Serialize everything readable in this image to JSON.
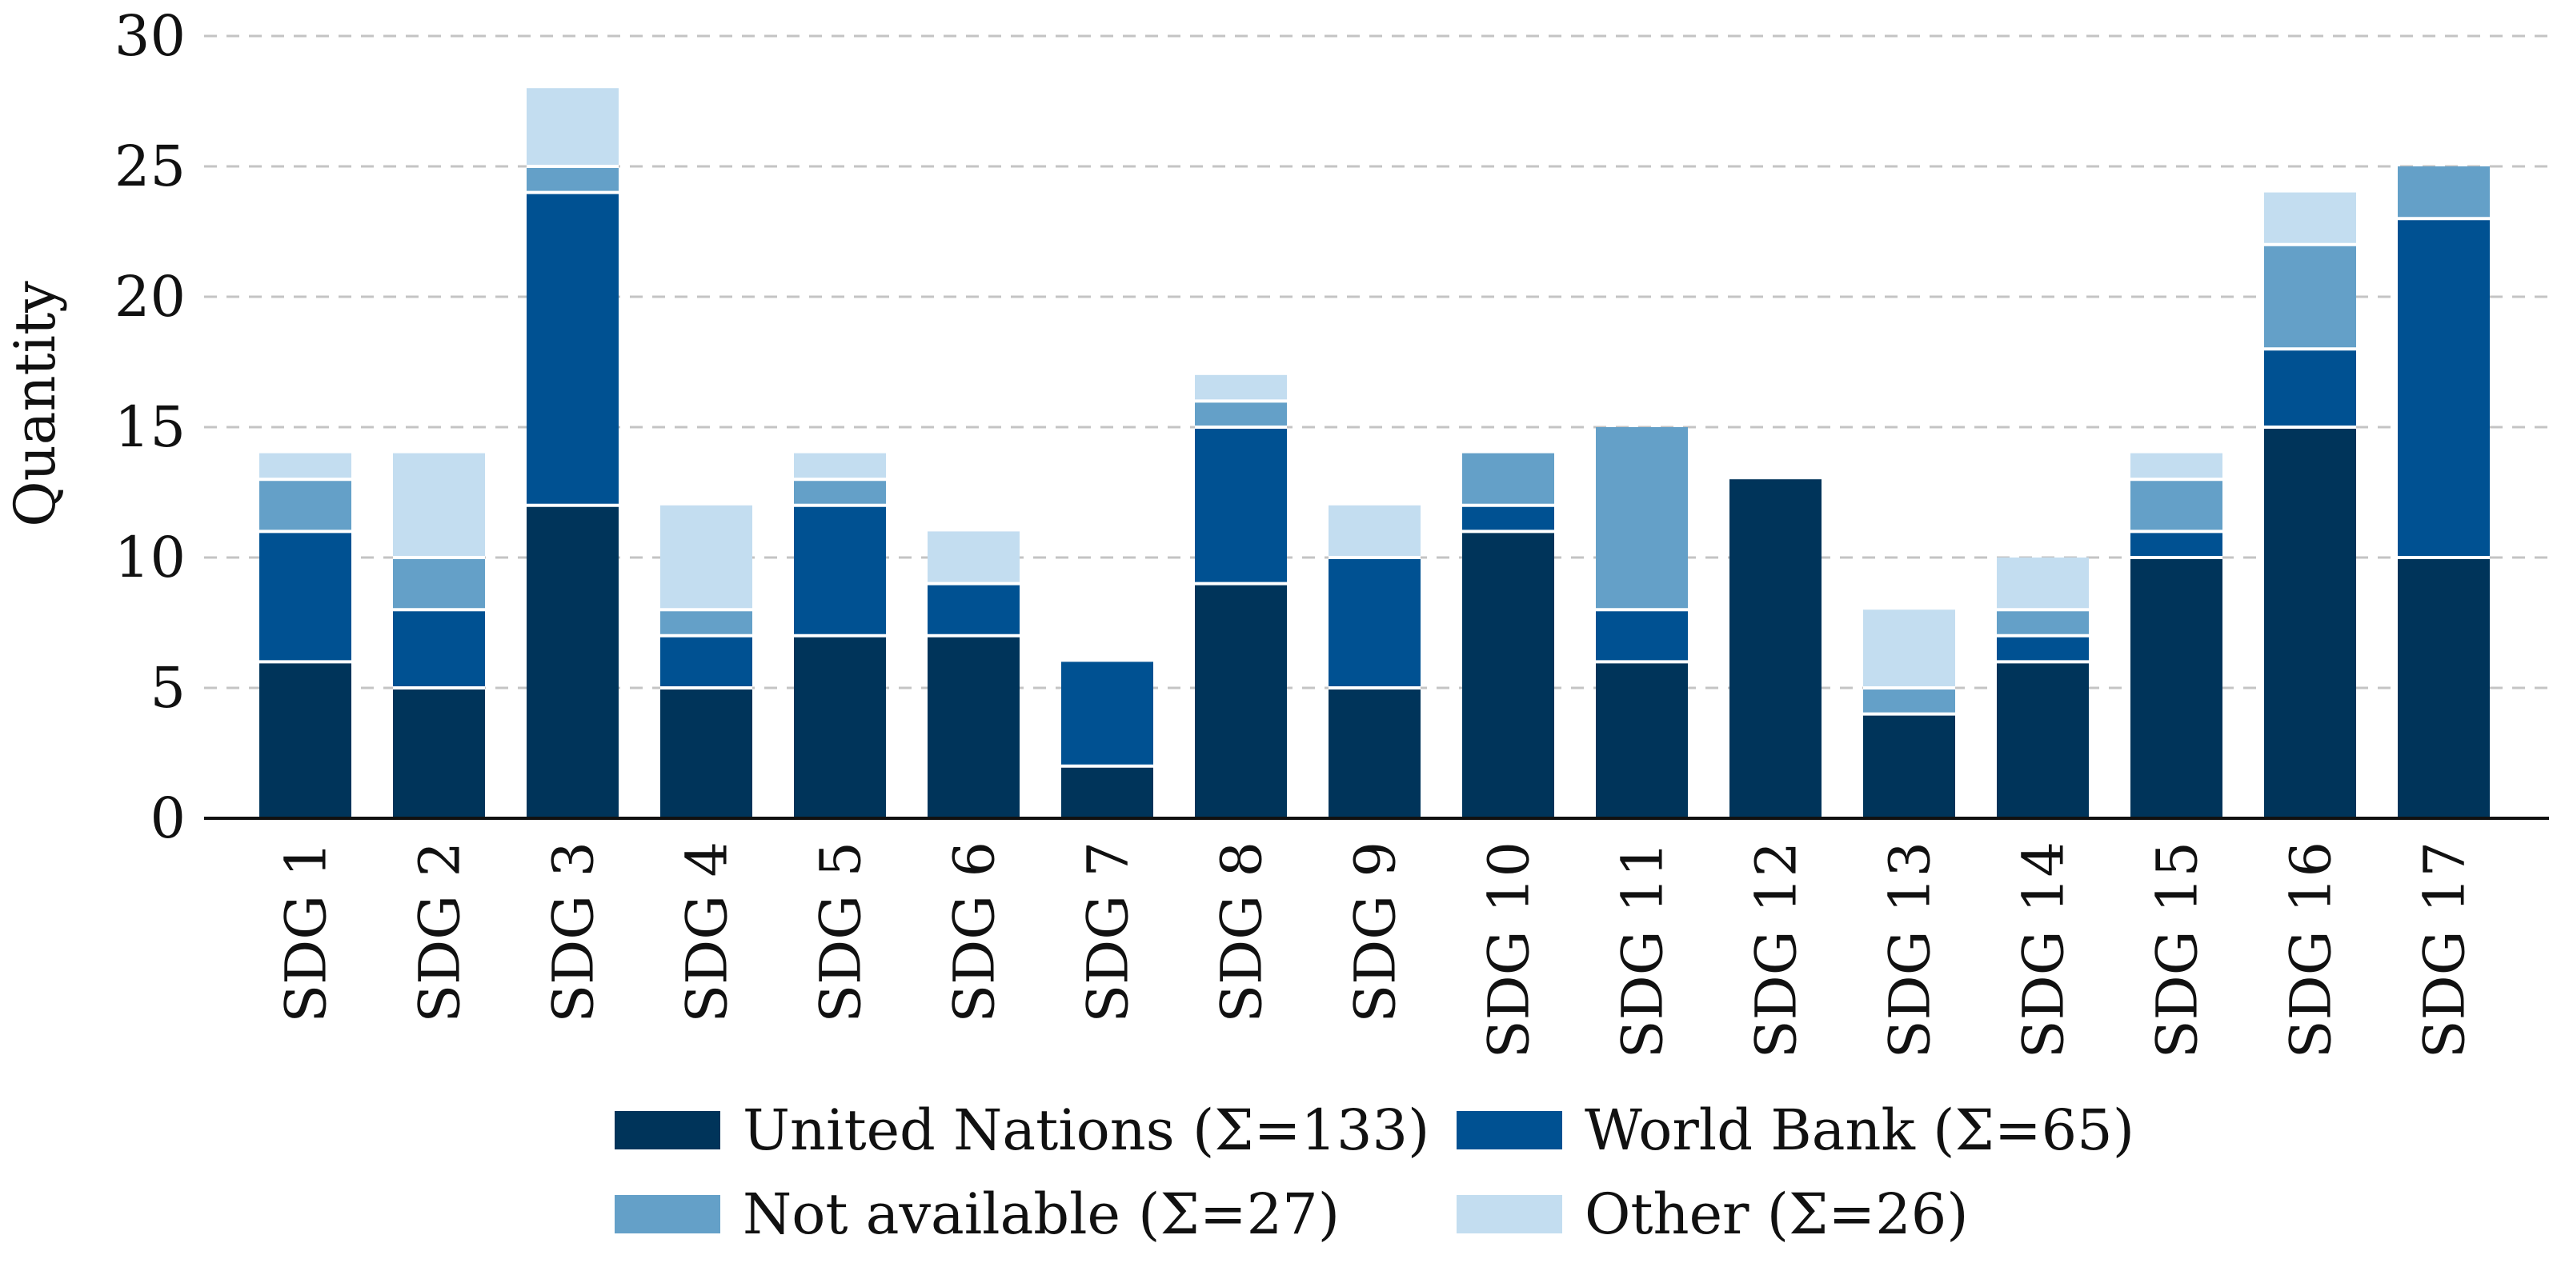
{
  "chart_data": {
    "type": "bar",
    "stacked": true,
    "title": "",
    "xlabel": "",
    "ylabel": "Quantity",
    "ylim": [
      0,
      30
    ],
    "yticks": [
      0,
      5,
      10,
      15,
      20,
      25,
      30
    ],
    "grid": "horizontal dashed",
    "legend_position": "bottom",
    "categories": [
      "SDG 1",
      "SDG 2",
      "SDG 3",
      "SDG 4",
      "SDG 5",
      "SDG 6",
      "SDG 7",
      "SDG 8",
      "SDG 9",
      "SDG 10",
      "SDG 11",
      "SDG 12",
      "SDG 13",
      "SDG 14",
      "SDG 15",
      "SDG 16",
      "SDG 17"
    ],
    "series": [
      {
        "name": "United Nations (Σ=133)",
        "color": "#00345a",
        "values": [
          6,
          5,
          12,
          5,
          7,
          7,
          2,
          9,
          5,
          11,
          6,
          13,
          4,
          6,
          10,
          15,
          10
        ]
      },
      {
        "name": "World Bank (Σ=65)",
        "color": "#005192",
        "values": [
          5,
          3,
          12,
          2,
          5,
          2,
          4,
          6,
          5,
          1,
          2,
          0,
          0,
          1,
          1,
          3,
          13
        ]
      },
      {
        "name": "Not available (Σ=27)",
        "color": "#64a0c8",
        "values": [
          2,
          2,
          1,
          1,
          1,
          0,
          0,
          1,
          0,
          2,
          7,
          0,
          1,
          1,
          2,
          4,
          2
        ]
      },
      {
        "name": "Other (Σ=26)",
        "color": "#c3ddf0",
        "values": [
          1,
          4,
          3,
          4,
          1,
          2,
          0,
          1,
          2,
          0,
          0,
          0,
          3,
          2,
          1,
          2,
          0
        ]
      }
    ]
  }
}
